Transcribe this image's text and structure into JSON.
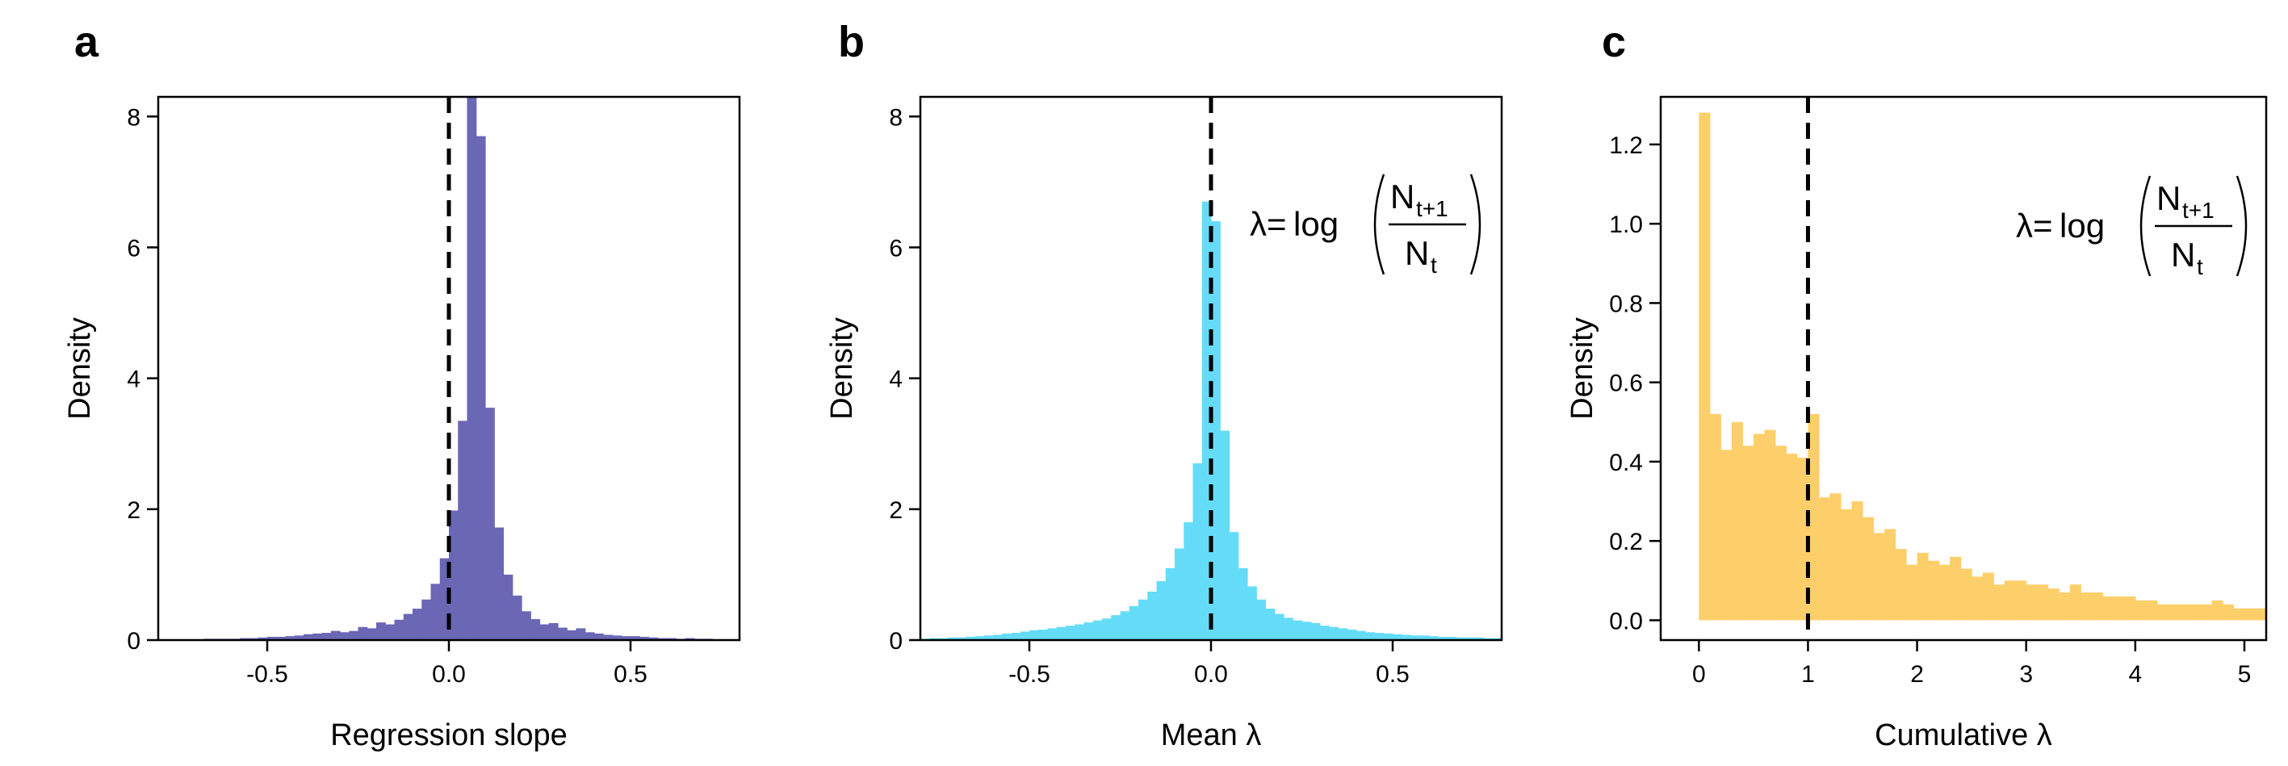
{
  "chart_data": [
    {
      "type": "bar",
      "panel": "a",
      "title": "",
      "xlabel": "Regression slope",
      "ylabel": "Density",
      "xlim": [
        -0.8,
        0.8
      ],
      "ylim": [
        0,
        8.3
      ],
      "xticks": [
        "-0.5",
        "0.0",
        "0.5"
      ],
      "yticks": [
        "0",
        "2",
        "4",
        "6",
        "8"
      ],
      "bar_color": "#6A67B5",
      "ref_line_x": 0,
      "ref_line_style": "dashed",
      "grid": false,
      "bin_width": 0.025,
      "bins_start": -0.8,
      "values": [
        0.01,
        0.01,
        0.01,
        0.01,
        0.01,
        0.02,
        0.02,
        0.02,
        0.02,
        0.03,
        0.03,
        0.04,
        0.05,
        0.05,
        0.06,
        0.07,
        0.09,
        0.1,
        0.11,
        0.14,
        0.12,
        0.14,
        0.2,
        0.18,
        0.27,
        0.24,
        0.31,
        0.4,
        0.48,
        0.62,
        0.86,
        1.25,
        1.98,
        3.35,
        8.3,
        7.7,
        3.55,
        1.72,
        1.0,
        0.68,
        0.44,
        0.32,
        0.24,
        0.26,
        0.19,
        0.15,
        0.18,
        0.12,
        0.1,
        0.08,
        0.07,
        0.06,
        0.06,
        0.05,
        0.04,
        0.03,
        0.03,
        0.02,
        0.03,
        0.02,
        0.02,
        0.01,
        0.01,
        0.01
      ]
    },
    {
      "type": "bar",
      "panel": "b",
      "title": "",
      "xlabel": "Mean",
      "xlabel_symbol": "λ",
      "ylabel": "Density",
      "xlim": [
        -0.8,
        0.8
      ],
      "ylim": [
        0,
        8.3
      ],
      "xticks": [
        "-0.5",
        "0.0",
        "0.5"
      ],
      "yticks": [
        "0",
        "2",
        "4",
        "6",
        "8"
      ],
      "bar_color": "#64DCF8",
      "ref_line_x": 0,
      "ref_line_style": "dashed",
      "grid": false,
      "formula": {
        "lhs": "λ=",
        "fn": "log",
        "num": "N",
        "num_sub": "t+1",
        "den": "N",
        "den_sub": "t"
      },
      "bin_width": 0.025,
      "bins_start": -0.8,
      "values": [
        0.02,
        0.03,
        0.03,
        0.04,
        0.04,
        0.05,
        0.06,
        0.07,
        0.08,
        0.1,
        0.11,
        0.13,
        0.15,
        0.16,
        0.18,
        0.2,
        0.22,
        0.24,
        0.27,
        0.3,
        0.33,
        0.38,
        0.44,
        0.52,
        0.62,
        0.74,
        0.9,
        1.1,
        1.4,
        1.8,
        2.7,
        6.7,
        6.4,
        3.2,
        1.65,
        1.1,
        0.82,
        0.62,
        0.48,
        0.4,
        0.34,
        0.3,
        0.28,
        0.26,
        0.22,
        0.2,
        0.18,
        0.16,
        0.14,
        0.12,
        0.11,
        0.1,
        0.09,
        0.08,
        0.07,
        0.07,
        0.06,
        0.05,
        0.05,
        0.04,
        0.04,
        0.04,
        0.03,
        0.03
      ]
    },
    {
      "type": "bar",
      "panel": "c",
      "title": "",
      "xlabel": "Cumulative",
      "xlabel_symbol": "λ",
      "ylabel": "Density",
      "xlim": [
        -0.35,
        5.2
      ],
      "ylim": [
        -0.05,
        1.32
      ],
      "xticks": [
        "0",
        "1",
        "2",
        "3",
        "4",
        "5"
      ],
      "yticks": [
        "0.0",
        "0.2",
        "0.4",
        "0.6",
        "0.8",
        "1.0",
        "1.2"
      ],
      "bar_color": "#FDCF6A",
      "ref_line_x": 1,
      "ref_line_style": "dashed",
      "grid": false,
      "formula": {
        "lhs": "λ=",
        "fn": "log",
        "num": "N",
        "num_sub": "t+1",
        "den": "N",
        "den_sub": "t"
      },
      "bin_width": 0.1,
      "bins_start": 0,
      "values": [
        1.28,
        0.52,
        0.43,
        0.5,
        0.44,
        0.47,
        0.48,
        0.44,
        0.42,
        0.41,
        0.52,
        0.31,
        0.32,
        0.28,
        0.3,
        0.26,
        0.22,
        0.23,
        0.18,
        0.14,
        0.17,
        0.15,
        0.14,
        0.16,
        0.13,
        0.11,
        0.12,
        0.09,
        0.1,
        0.1,
        0.09,
        0.09,
        0.08,
        0.07,
        0.09,
        0.07,
        0.07,
        0.06,
        0.06,
        0.06,
        0.05,
        0.05,
        0.04,
        0.04,
        0.04,
        0.04,
        0.04,
        0.05,
        0.04,
        0.03,
        0.03,
        0.03,
        0.04,
        0.03,
        0.04,
        0.03,
        0.05,
        0.04,
        0.03,
        0.03,
        0.03,
        0.03,
        0.03,
        0.03,
        0.03,
        0.03,
        0.03,
        0.04,
        0.04,
        0.03,
        0.03,
        0.03,
        0.03,
        0.03,
        0.03,
        0.03,
        0.04,
        0.03,
        0.03,
        0.03,
        0.03,
        0.03,
        0.03,
        0.03,
        0.03,
        0.03,
        0.03,
        0.03,
        0.03,
        0.03,
        0.03,
        0.03,
        0.03,
        0.03,
        0.03,
        0.03,
        0.03,
        0.03,
        0.03,
        0.04
      ]
    }
  ]
}
